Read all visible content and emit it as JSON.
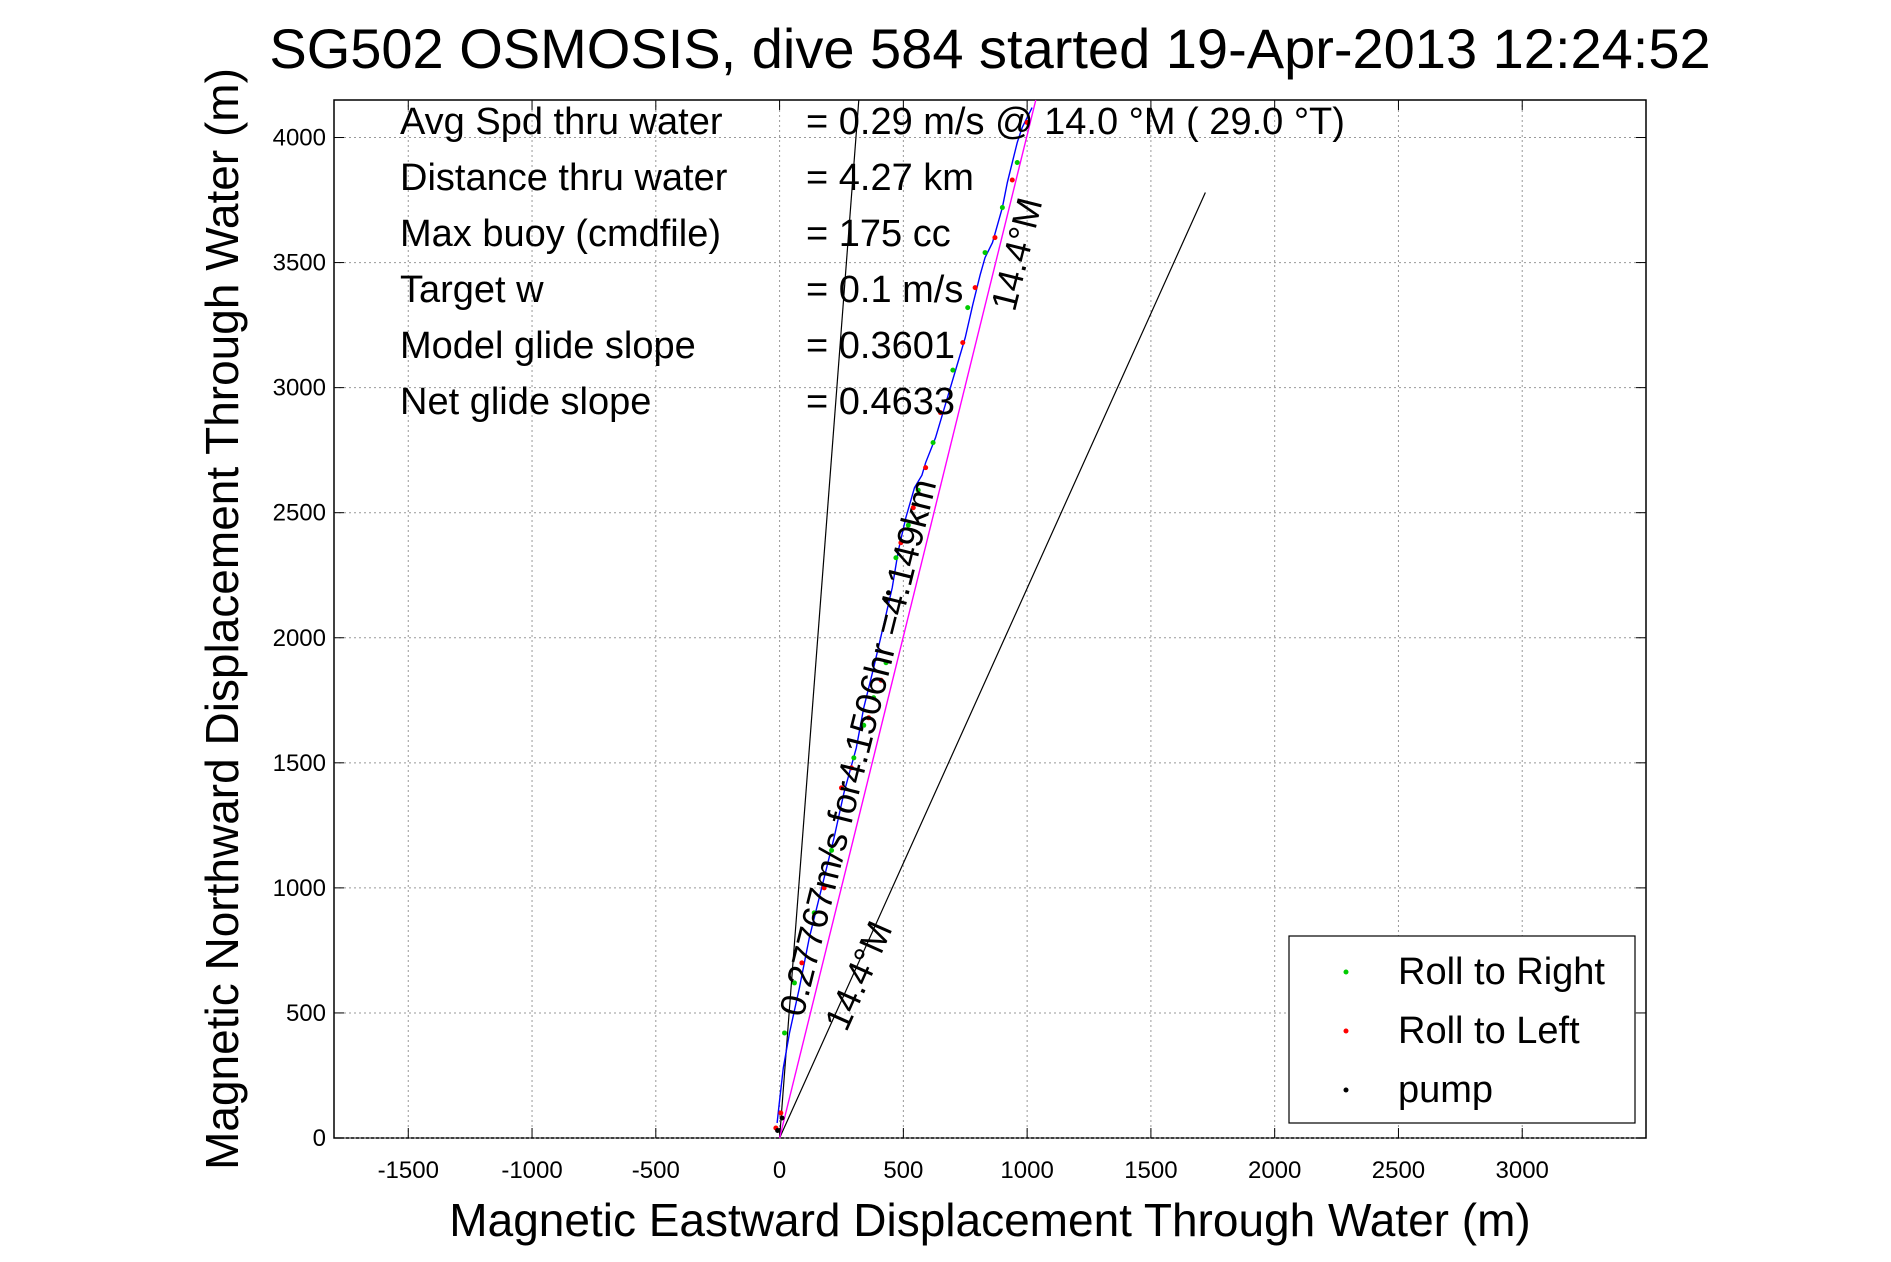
{
  "chart_data": {
    "type": "line",
    "title": "SG502 OSMOSIS, dive 584 started 19-Apr-2013 12:24:52",
    "xlabel": "Magnetic Eastward Displacement Through Water (m)",
    "ylabel": "Magnetic Northward Displacement Through Water (m)",
    "xlim": [
      -1800,
      3500
    ],
    "ylim": [
      0,
      4150
    ],
    "xticks": [
      -1500,
      -1000,
      -500,
      0,
      500,
      1000,
      1500,
      2000,
      2500,
      3000
    ],
    "yticks": [
      0,
      500,
      1000,
      1500,
      2000,
      2500,
      3000,
      3500,
      4000
    ],
    "grid": true,
    "legend_position": "bottom-right",
    "stats": [
      {
        "label": "Avg Spd thru water",
        "value": "=  0.29 m/s @  14.0 °M ( 29.0 °T)"
      },
      {
        "label": "Distance thru water",
        "value": "=  4.27 km"
      },
      {
        "label": "Max buoy (cmdfile)",
        "value": "= 175 cc"
      },
      {
        "label": "Target w",
        "value": "= 0.1 m/s"
      },
      {
        "label": "Model glide slope",
        "value": "= 0.3601"
      },
      {
        "label": "Net glide slope",
        "value": "= 0.4633"
      }
    ],
    "annotations": [
      {
        "text": "0.27767m/s for4.1506hr =4.149km",
        "x": 95,
        "y": 480,
        "angle_deg": -76
      },
      {
        "text": "14.4°M",
        "x": 950,
        "y": 3300,
        "angle_deg": -76
      },
      {
        "text": "14.4°M",
        "x": 270,
        "y": 420,
        "angle_deg": -66
      }
    ],
    "guide_lines": [
      {
        "x": [
          0,
          320
        ],
        "y": [
          0,
          4150
        ]
      },
      {
        "x": [
          0,
          1720
        ],
        "y": [
          0,
          3780
        ]
      }
    ],
    "series": [
      {
        "name": "",
        "color": "#0000ff",
        "x": [
          -10,
          0,
          15,
          40,
          80,
          120,
          170,
          220,
          260,
          310,
          340,
          380,
          420,
          455,
          480,
          510,
          545,
          575,
          590,
          630,
          660,
          690,
          720,
          750,
          780,
          810,
          830,
          860,
          880,
          900,
          920,
          940,
          960,
          980,
          1000,
          1020
        ],
        "y": [
          60,
          150,
          280,
          420,
          600,
          800,
          1000,
          1200,
          1380,
          1560,
          1720,
          1880,
          2050,
          2200,
          2350,
          2480,
          2600,
          2650,
          2700,
          2800,
          2900,
          3000,
          3100,
          3200,
          3330,
          3450,
          3520,
          3580,
          3650,
          3720,
          3820,
          3900,
          3980,
          4040,
          4080,
          4120
        ]
      },
      {
        "name": "",
        "color": "#ff00ff",
        "x": [
          0,
          1035
        ],
        "y": [
          0,
          4150
        ]
      },
      {
        "name": "Roll to Right",
        "color": "#00cc00",
        "marker_only": true,
        "x": [
          20,
          60,
          140,
          210,
          300,
          340,
          380,
          430,
          470,
          520,
          560,
          620,
          700,
          760,
          830,
          900,
          960
        ],
        "y": [
          420,
          620,
          900,
          1150,
          1520,
          1650,
          1760,
          1900,
          2320,
          2450,
          2590,
          2780,
          3070,
          3320,
          3540,
          3720,
          3900
        ]
      },
      {
        "name": "Roll to Left",
        "color": "#ff0000",
        "marker_only": true,
        "x": [
          -15,
          5,
          90,
          180,
          250,
          290,
          360,
          410,
          490,
          540,
          590,
          650,
          740,
          790,
          870,
          940,
          1000
        ],
        "y": [
          40,
          100,
          700,
          1000,
          1400,
          1480,
          1680,
          1830,
          2380,
          2520,
          2680,
          2900,
          3180,
          3400,
          3600,
          3830,
          4060
        ]
      },
      {
        "name": "pump",
        "color": "#000000",
        "marker_only": true,
        "x": [
          -8,
          10,
          430,
          440
        ],
        "y": [
          30,
          80,
          2150,
          2180
        ]
      }
    ]
  }
}
